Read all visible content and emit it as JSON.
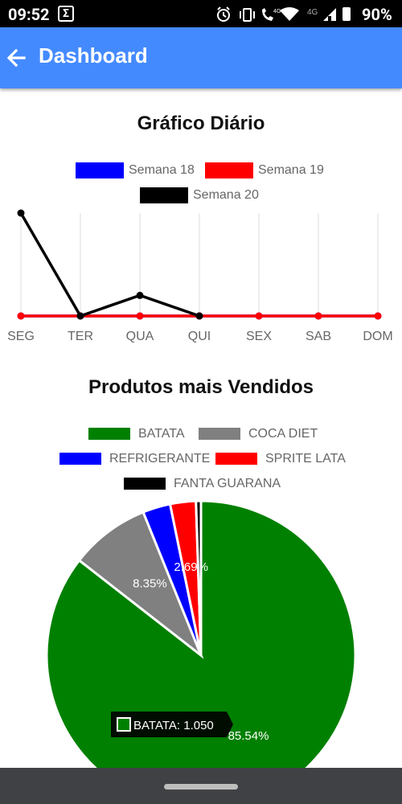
{
  "status_bar": {
    "time": "09:52",
    "app_icon": "Σ",
    "signal_label": "4G",
    "signal_label_2": "4G",
    "battery": "90%",
    "icons": [
      "alarm-icon",
      "vibrate-icon",
      "volte-call-icon",
      "wifi-icon",
      "cell-signal-icon",
      "battery-icon"
    ]
  },
  "app_bar": {
    "title": "Dashboard",
    "back_icon": "arrow-left-icon"
  },
  "daily_chart": {
    "title": "Gráfico Diário",
    "legend": [
      {
        "label": "Semana 18",
        "color": "#0000ff"
      },
      {
        "label": "Semana 19",
        "color": "#ff0000"
      },
      {
        "label": "Semana 20",
        "color": "#000000"
      }
    ]
  },
  "products_chart": {
    "title": "Produtos mais Vendidos",
    "legend": [
      {
        "label": "BATATA",
        "color": "#008000"
      },
      {
        "label": "COCA DIET",
        "color": "#808080"
      },
      {
        "label": "REFRIGERANTE",
        "color": "#0000ff"
      },
      {
        "label": "SPRITE LATA",
        "color": "#ff0000"
      },
      {
        "label": "FANTA GUARANA",
        "color": "#000000"
      }
    ],
    "tooltip": "BATATA: 1.050"
  },
  "chart_data": [
    {
      "type": "line",
      "title": "Gráfico Diário",
      "categories": [
        "SEG",
        "TER",
        "QUA",
        "QUI",
        "SEX",
        "SAB",
        "DOM"
      ],
      "ylim": [
        0,
        5
      ],
      "series": [
        {
          "name": "Semana 18",
          "color": "#0000ff",
          "values": [
            0,
            0,
            0,
            0,
            0,
            0,
            0
          ]
        },
        {
          "name": "Semana 19",
          "color": "#ff0000",
          "values": [
            0,
            0,
            0,
            0,
            0,
            0,
            0
          ]
        },
        {
          "name": "Semana 20",
          "color": "#000000",
          "values": [
            5,
            0,
            1,
            0,
            null,
            null,
            null
          ]
        }
      ],
      "grid": "vertical"
    },
    {
      "type": "pie",
      "title": "Produtos mais Vendidos",
      "labels": [
        "BATATA",
        "COCA DIET",
        "REFRIGERANTE",
        "SPRITE LATA",
        "FANTA GUARANA"
      ],
      "values": [
        85.54,
        8.35,
        2.9,
        2.69,
        0.52
      ],
      "colors": [
        "#008000",
        "#808080",
        "#0000ff",
        "#ff0000",
        "#000000"
      ],
      "slice_labels": [
        "85.54%",
        "8.35%",
        "",
        "2.69%",
        ""
      ]
    }
  ]
}
